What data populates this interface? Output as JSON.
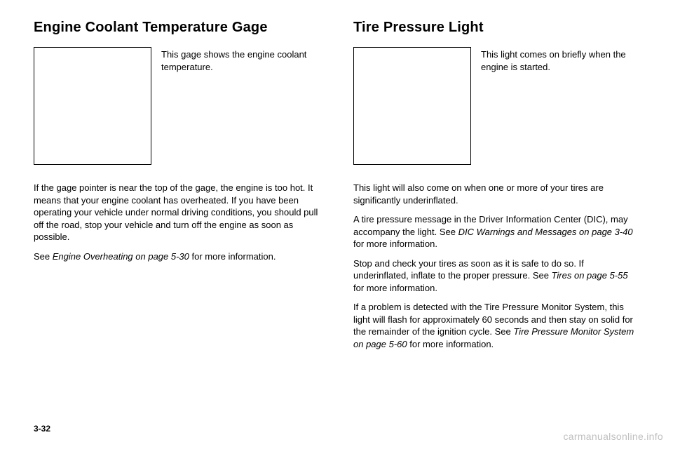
{
  "left": {
    "title": "Engine Coolant Temperature Gage",
    "caption": "This gage shows the engine coolant temperature.",
    "p1": "If the gage pointer is near the top of the gage, the engine is too hot. It means that your engine coolant has overheated. If you have been operating your vehicle under normal driving conditions, you should pull off the road, stop your vehicle and turn off the engine as soon as possible.",
    "p2_pre": "See ",
    "p2_em": "Engine Overheating on page 5-30",
    "p2_post": " for more information."
  },
  "right": {
    "title": "Tire Pressure Light",
    "caption": "This light comes on briefly when the engine is started.",
    "p1": "This light will also come on when one or more of your tires are significantly underinflated.",
    "p2_pre": "A tire pressure message in the Driver Information Center (DIC), may accompany the light. See ",
    "p2_em": "DIC Warnings and Messages on page 3-40",
    "p2_post": " for more information.",
    "p3_pre": "Stop and check your tires as soon as it is safe to do so. If underinflated, inflate to the proper pressure. See ",
    "p3_em": "Tires on page 5-55",
    "p3_post": " for more information.",
    "p4_pre": "If a problem is detected with the Tire Pressure Monitor System, this light will flash for approximately 60 seconds and then stay on solid for the remainder of the ignition cycle. See ",
    "p4_em": "Tire Pressure Monitor System on page 5-60",
    "p4_post": " for more information."
  },
  "footer": {
    "page": "3-32",
    "watermark": "carmanualsonline.info"
  }
}
